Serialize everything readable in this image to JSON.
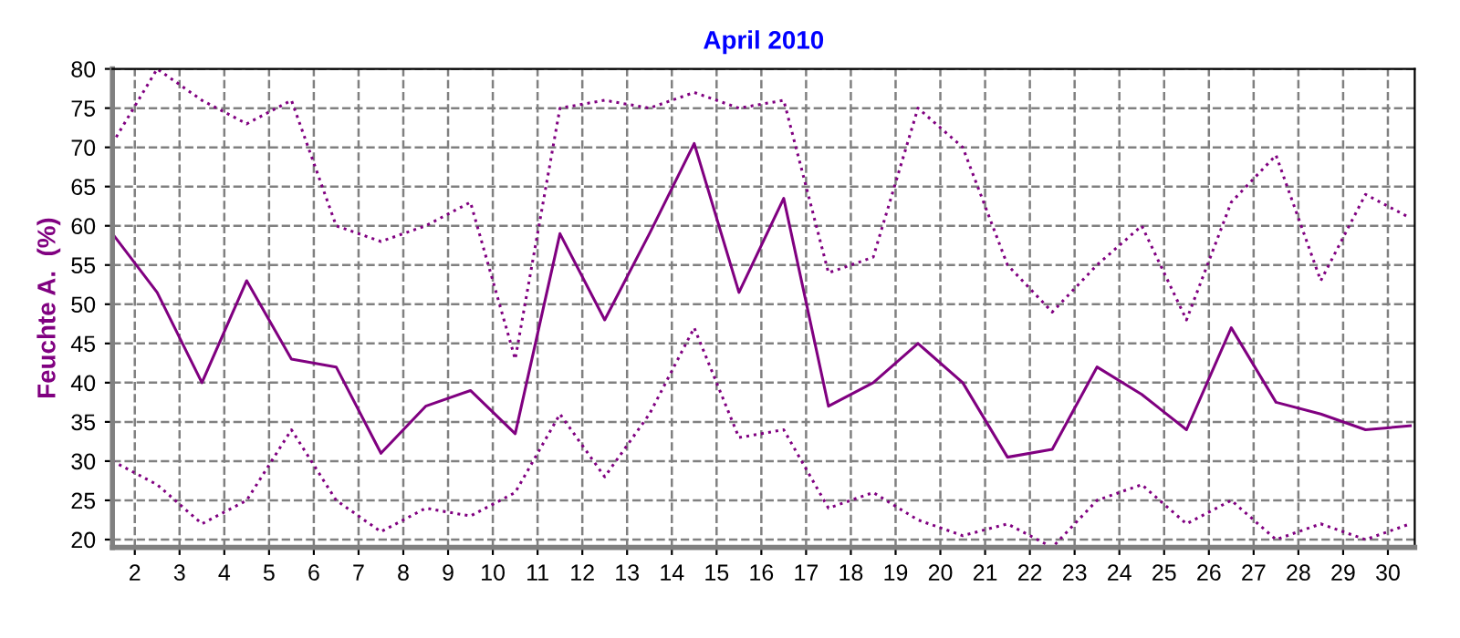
{
  "chart_data": {
    "type": "line",
    "title": "April 2010",
    "ylabel": "Feuchte A.  (%)",
    "x": [
      1.5,
      2.5,
      3.5,
      4.5,
      5.5,
      6.5,
      7.5,
      8.5,
      9.5,
      10.5,
      11.5,
      12.5,
      13.5,
      14.5,
      15.5,
      16.5,
      17.5,
      18.5,
      19.5,
      20.5,
      21.5,
      22.5,
      23.5,
      24.5,
      25.5,
      26.5,
      27.5,
      28.5,
      29.5,
      30.5
    ],
    "xlim": [
      1.5,
      30.6
    ],
    "xticks": [
      2,
      3,
      4,
      5,
      6,
      7,
      8,
      9,
      10,
      11,
      12,
      13,
      14,
      15,
      16,
      17,
      18,
      19,
      20,
      21,
      22,
      23,
      24,
      25,
      26,
      27,
      28,
      29,
      30
    ],
    "ylim": [
      19,
      80
    ],
    "yticks": [
      20,
      25,
      30,
      35,
      40,
      45,
      50,
      55,
      60,
      65,
      70,
      75,
      80
    ],
    "grid": true,
    "marker": "none",
    "series": [
      {
        "color": "#800080",
        "line_style": "dotted",
        "values": [
          70.5,
          80,
          76,
          73,
          76,
          60,
          58,
          60,
          63,
          43,
          75,
          76,
          75,
          77,
          75,
          76,
          54,
          56,
          75,
          70,
          55,
          49,
          55,
          60,
          48,
          63,
          69,
          53,
          64,
          61
        ]
      },
      {
        "color": "#800080",
        "line_style": "solid",
        "values": [
          59,
          51.5,
          40,
          53,
          43,
          42,
          31,
          37,
          39,
          33.5,
          59,
          48,
          59,
          70.5,
          51.5,
          63.5,
          37,
          40,
          45,
          40,
          30.5,
          31.5,
          42,
          38.5,
          34,
          47,
          37.5,
          36,
          34,
          34.5
        ]
      },
      {
        "color": "#800080",
        "line_style": "dotted",
        "values": [
          30,
          27,
          22,
          25,
          34,
          25,
          21,
          24,
          23,
          26,
          36,
          28,
          36,
          47,
          33,
          34,
          24,
          26,
          22.5,
          20.5,
          22,
          19,
          25,
          27,
          22,
          25,
          20,
          22,
          20,
          22
        ]
      }
    ]
  }
}
